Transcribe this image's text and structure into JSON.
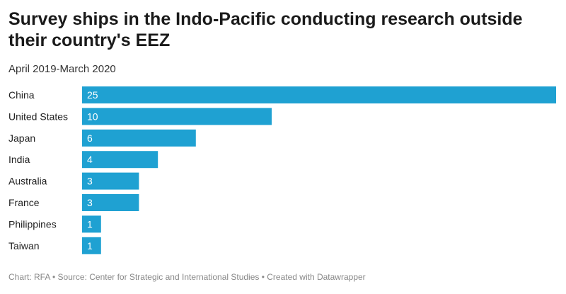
{
  "title": "Survey ships in the Indo-Pacific conducting research outside their country's EEZ",
  "subtitle": "April 2019-March 2020",
  "footer": "Chart: RFA • Source: Center for Strategic and International Studies • Created with Datawrapper",
  "colors": {
    "bar": "#1fa1d2",
    "label_in_bar": "#ffffff",
    "category_text": "#222222"
  },
  "chart_data": {
    "type": "bar",
    "orientation": "horizontal",
    "categories": [
      "China",
      "United States",
      "Japan",
      "India",
      "Australia",
      "France",
      "Philippines",
      "Taiwan"
    ],
    "values": [
      25,
      10,
      6,
      4,
      3,
      3,
      1,
      1
    ],
    "xlim": [
      0,
      25
    ],
    "grid": false,
    "legend": false,
    "value_labels": "inside-bar"
  }
}
